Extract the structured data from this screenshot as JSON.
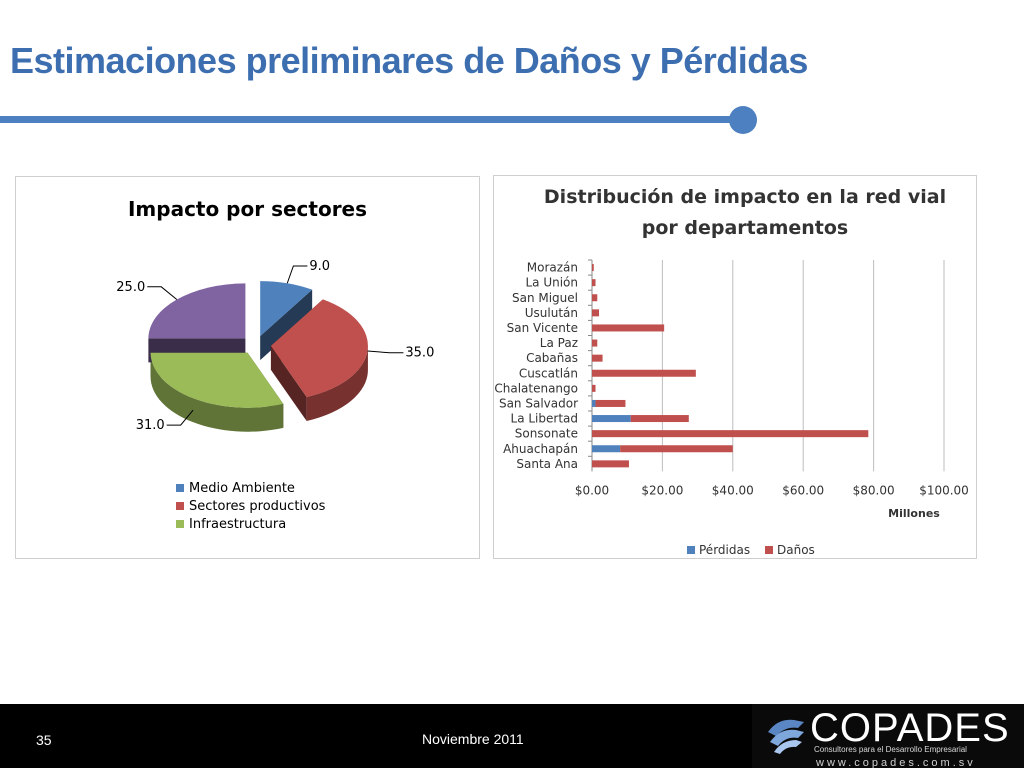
{
  "slide": {
    "title": "Estimaciones preliminares de Daños y Pérdidas",
    "page_number": "35",
    "date": "Noviembre 2011"
  },
  "logo": {
    "name": "COPADES",
    "tagline": "Consultores para el Desarrollo Empresarial",
    "url": "www.copades.com.sv"
  },
  "colors": {
    "title": "#3d6fb0",
    "rule": "#4d80c0",
    "footer": "#000000",
    "blue": "#4f81bd",
    "red": "#c0504d",
    "green": "#9bbb59",
    "purple": "#8064a2"
  },
  "chart_data": [
    {
      "type": "pie",
      "title": "Impacto por sectores",
      "categories": [
        "Medio Ambiente",
        "Sectores productivos",
        "Infraestructura",
        ""
      ],
      "values": [
        9.0,
        35.0,
        31.0,
        25.0
      ],
      "value_labels": [
        "9.0",
        "35.0",
        "31.0",
        "25.0"
      ],
      "colors": [
        "#4f81bd",
        "#c0504d",
        "#9bbb59",
        "#8064a2"
      ],
      "legend": [
        "Medio Ambiente",
        "Sectores productivos",
        "Infraestructura"
      ],
      "legend_position": "bottom",
      "style": "3d exploded"
    },
    {
      "type": "bar",
      "orientation": "horizontal",
      "stacked": true,
      "title_lines": [
        "Distribución de impacto en la red vial",
        "por departamentos"
      ],
      "categories": [
        "Morazán",
        "La Unión",
        "San Miguel",
        "Usulután",
        "San Vicente",
        "La Paz",
        "Cabañas",
        "Cuscatlán",
        "Chalatenango",
        "San Salvador",
        "La Libertad",
        "Sonsonate",
        "Ahuachapán",
        "Santa Ana"
      ],
      "series": [
        {
          "name": "Pérdidas",
          "color": "#4f81bd",
          "values": [
            0,
            0,
            0,
            0,
            0,
            0,
            0,
            0,
            0,
            1,
            11,
            0,
            8,
            0
          ]
        },
        {
          "name": "Daños",
          "color": "#c0504d",
          "values": [
            0.5,
            1,
            1.5,
            2,
            20.5,
            1.5,
            3,
            29.5,
            1,
            8.5,
            16.5,
            78.5,
            32,
            10.5
          ]
        }
      ],
      "xlabel": "Millones",
      "xlim": [
        0,
        100
      ],
      "xticks": [
        "$0.00",
        "$20.00",
        "$40.00",
        "$60.00",
        "$80.00",
        "$100.00"
      ],
      "xtick_values": [
        0,
        20,
        40,
        60,
        80,
        100
      ],
      "grid": "vertical",
      "legend_position": "bottom"
    }
  ]
}
